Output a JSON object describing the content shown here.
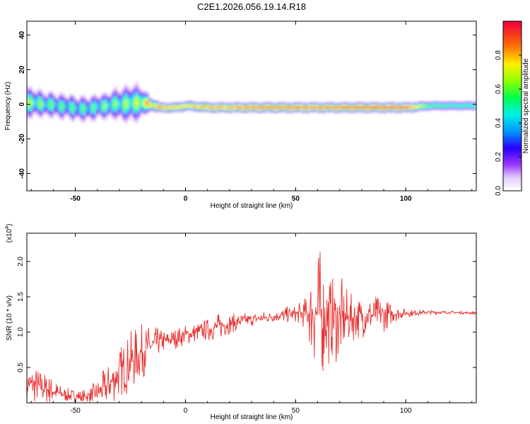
{
  "title": "C2E1.2026.056.19.14.R18",
  "chart_data": [
    {
      "type": "heatmap",
      "xlabel": "Height of straight line (km)",
      "ylabel": "Frequency (Hz)",
      "xlim": [
        -72,
        132
      ],
      "ylim": [
        -50,
        48
      ],
      "xticks": [
        -50,
        0,
        50,
        100
      ],
      "yticks": [
        -40,
        -20,
        0,
        20,
        40
      ],
      "colorbar": {
        "label": "Normalized spectral amplitude",
        "range": [
          0.0,
          1.0
        ],
        "ticks": [
          0.0,
          0.2,
          0.4,
          0.6,
          0.8
        ],
        "tick_labels": [
          "0.0",
          "0.2",
          "0.4",
          "0.6",
          "0.8"
        ]
      },
      "ridge": {
        "x": [
          -72,
          -65,
          -58,
          -52,
          -47,
          -42,
          -37,
          -32,
          -27,
          -22,
          -17,
          -12,
          -5,
          0,
          10,
          20,
          30,
          40,
          50,
          60,
          70,
          80,
          90,
          100,
          110,
          120,
          132
        ],
        "frequency": [
          1,
          0,
          -1,
          -2,
          -3,
          -2,
          -1,
          0,
          0,
          1,
          0,
          -2,
          -2,
          -1,
          -2,
          -2,
          -2,
          -2,
          -2,
          -2,
          -2,
          -2,
          -2,
          -2,
          -1,
          -1,
          -1
        ],
        "spread": [
          6,
          5,
          5,
          5,
          5,
          5,
          5,
          6,
          7,
          7,
          3,
          2,
          2,
          2,
          2,
          2,
          2,
          2,
          2,
          2,
          2,
          2,
          2,
          2,
          2,
          2,
          2
        ],
        "peak_amplitude": [
          0.55,
          0.5,
          0.45,
          0.45,
          0.45,
          0.45,
          0.5,
          0.5,
          0.55,
          0.6,
          0.8,
          0.85,
          0.8,
          0.75,
          0.85,
          0.85,
          0.9,
          0.9,
          0.92,
          0.9,
          0.9,
          0.95,
          0.95,
          0.95,
          0.55,
          0.5,
          0.5
        ]
      }
    },
    {
      "type": "line",
      "xlabel": "Height of straight line (km)",
      "ylabel": "SNR (10 * v/v)",
      "y_multiplier": "(x10",
      "y_multiplier_exp": "4",
      "y_multiplier_close": ")",
      "xlim": [
        -72,
        132
      ],
      "ylim": [
        0.0,
        2.4
      ],
      "xticks": [
        -50,
        0,
        50,
        100
      ],
      "yticks": [
        0.5,
        1.0,
        1.5,
        2.0
      ],
      "ytick_labels": [
        "0.5",
        "1.0",
        "1.5",
        "2.0"
      ],
      "color": "#e8302e",
      "series": {
        "x": [
          -72,
          -68,
          -64,
          -60,
          -56,
          -52,
          -48,
          -44,
          -40,
          -36,
          -32,
          -28,
          -24,
          -20,
          -16,
          -12,
          -8,
          -4,
          0,
          4,
          8,
          12,
          16,
          20,
          25,
          30,
          35,
          40,
          45,
          50,
          55,
          58,
          60,
          62,
          64,
          66,
          68,
          70,
          72,
          75,
          80,
          85,
          90,
          95,
          100,
          110,
          120,
          132
        ],
        "y": [
          0.28,
          0.25,
          0.2,
          0.16,
          0.12,
          0.1,
          0.09,
          0.1,
          0.14,
          0.22,
          0.35,
          0.5,
          0.6,
          0.72,
          0.8,
          0.86,
          0.88,
          0.92,
          0.96,
          0.99,
          1.02,
          1.05,
          1.09,
          1.12,
          1.15,
          1.18,
          1.2,
          1.22,
          1.24,
          1.26,
          1.27,
          1.28,
          1.26,
          1.25,
          1.22,
          1.2,
          1.18,
          1.15,
          1.18,
          1.2,
          1.22,
          1.24,
          1.25,
          1.26,
          1.27,
          1.28,
          1.28,
          1.27
        ],
        "noise": [
          0.3,
          0.28,
          0.25,
          0.2,
          0.12,
          0.1,
          0.1,
          0.1,
          0.2,
          0.3,
          0.35,
          0.4,
          0.45,
          0.4,
          0.3,
          0.2,
          0.15,
          0.15,
          0.15,
          0.15,
          0.15,
          0.18,
          0.2,
          0.15,
          0.12,
          0.1,
          0.1,
          0.08,
          0.12,
          0.12,
          0.25,
          0.8,
          1.0,
          0.9,
          0.8,
          0.6,
          0.6,
          0.7,
          0.5,
          0.35,
          0.3,
          0.3,
          0.25,
          0.12,
          0.06,
          0.03,
          0.02,
          0.02
        ]
      }
    }
  ]
}
